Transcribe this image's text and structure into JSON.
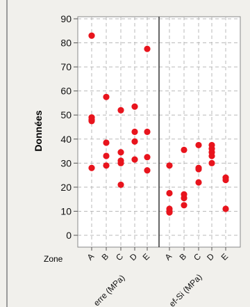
{
  "chart_data": {
    "type": "scatter",
    "ylabel": "Données",
    "xlabel": "Zone",
    "ylim": [
      0,
      90
    ],
    "yticks": [
      0,
      10,
      20,
      30,
      40,
      50,
      60,
      70,
      80,
      90
    ],
    "grid": true,
    "categories": [
      "A",
      "B",
      "C",
      "D",
      "E"
    ],
    "colors": {
      "point": "#e8141d",
      "grid": "#b9b9b9",
      "axis": "#555555",
      "panel": "#ffffff"
    },
    "panels": [
      {
        "group_label": "erre (MPa)",
        "points": [
          {
            "x": "A",
            "y": 83
          },
          {
            "x": "A",
            "y": 49
          },
          {
            "x": "A",
            "y": 48
          },
          {
            "x": "A",
            "y": 47.5
          },
          {
            "x": "A",
            "y": 28
          },
          {
            "x": "B",
            "y": 57.5
          },
          {
            "x": "B",
            "y": 38.5
          },
          {
            "x": "B",
            "y": 33
          },
          {
            "x": "B",
            "y": 29
          },
          {
            "x": "C",
            "y": 52
          },
          {
            "x": "C",
            "y": 34.5
          },
          {
            "x": "C",
            "y": 31
          },
          {
            "x": "C",
            "y": 30
          },
          {
            "x": "C",
            "y": 21
          },
          {
            "x": "D",
            "y": 53.5
          },
          {
            "x": "D",
            "y": 43
          },
          {
            "x": "D",
            "y": 39
          },
          {
            "x": "D",
            "y": 31.5
          },
          {
            "x": "E",
            "y": 77.5
          },
          {
            "x": "E",
            "y": 43
          },
          {
            "x": "E",
            "y": 32.5
          },
          {
            "x": "E",
            "y": 27
          }
        ]
      },
      {
        "group_label": "ef-Si (MPa)",
        "points": [
          {
            "x": "A",
            "y": 29
          },
          {
            "x": "A",
            "y": 17.5
          },
          {
            "x": "A",
            "y": 11
          },
          {
            "x": "A",
            "y": 10
          },
          {
            "x": "A",
            "y": 9.5
          },
          {
            "x": "B",
            "y": 35.5
          },
          {
            "x": "B",
            "y": 17
          },
          {
            "x": "B",
            "y": 15.5
          },
          {
            "x": "B",
            "y": 12.5
          },
          {
            "x": "C",
            "y": 37.5
          },
          {
            "x": "C",
            "y": 28
          },
          {
            "x": "C",
            "y": 27.5
          },
          {
            "x": "C",
            "y": 22
          },
          {
            "x": "D",
            "y": 37.5
          },
          {
            "x": "D",
            "y": 36
          },
          {
            "x": "D",
            "y": 34.5
          },
          {
            "x": "D",
            "y": 33
          },
          {
            "x": "D",
            "y": 30
          },
          {
            "x": "E",
            "y": 24
          },
          {
            "x": "E",
            "y": 23
          },
          {
            "x": "E",
            "y": 11
          }
        ]
      }
    ]
  }
}
